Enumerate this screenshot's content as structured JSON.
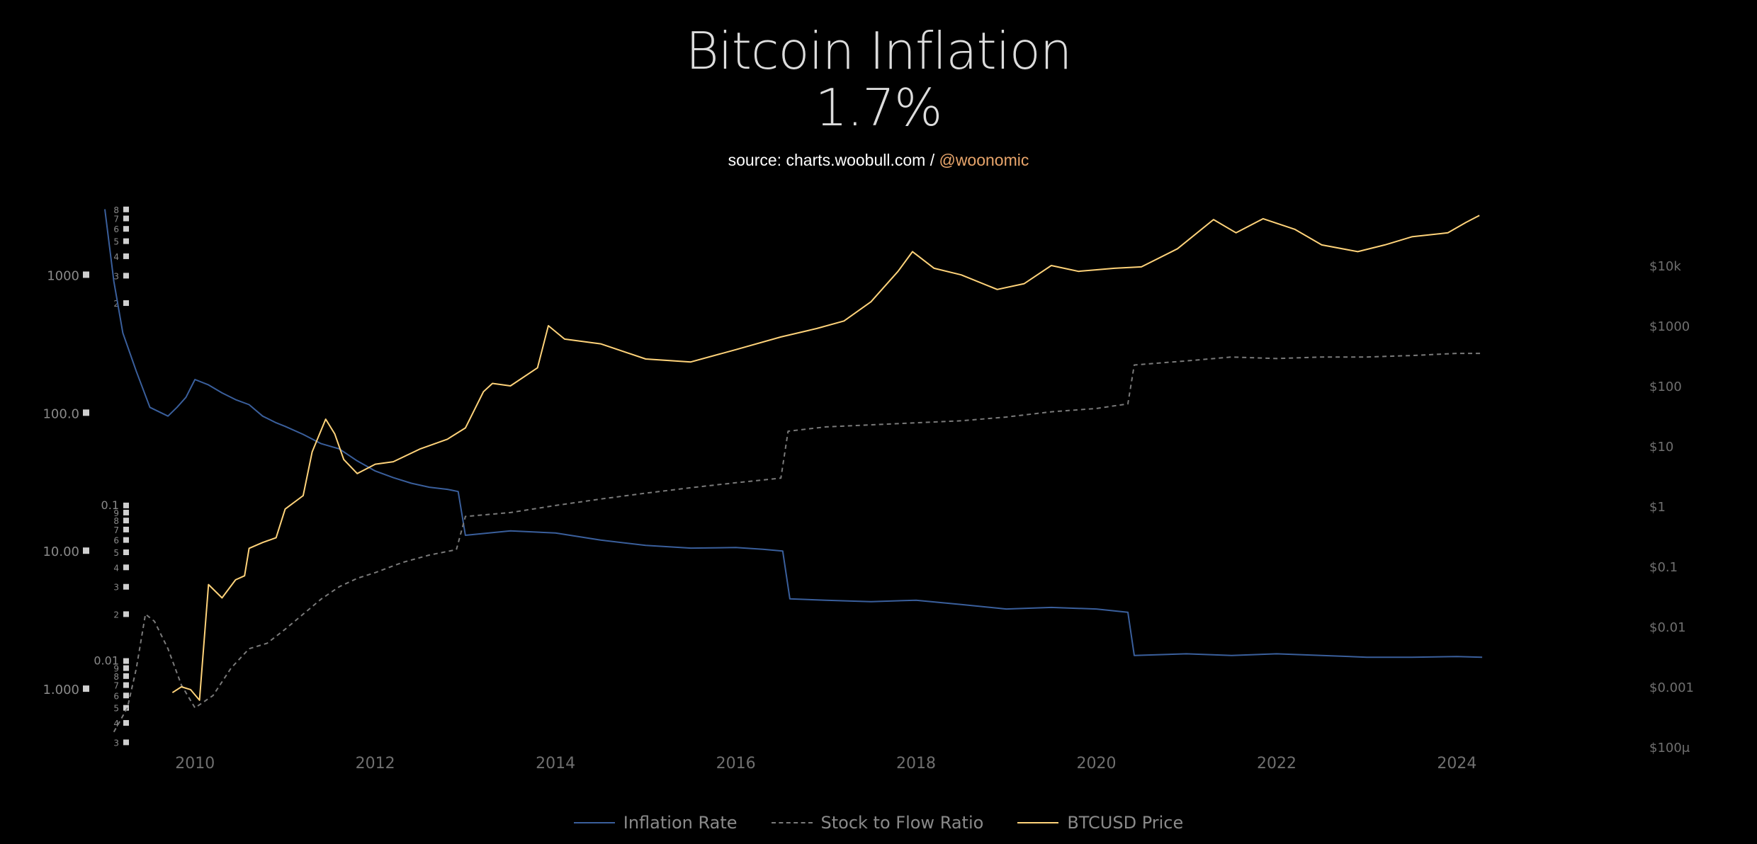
{
  "header": {
    "title": "Bitcoin Inflation",
    "value": "1.7%",
    "source_prefix": "source: charts.woobull.com / ",
    "source_handle": "@woonomic"
  },
  "legend": [
    {
      "label": "Inflation Rate",
      "color": "#3a5f9c",
      "style": "solid"
    },
    {
      "label": "Stock to Flow Ratio",
      "color": "#7a7a7a",
      "style": "dashed"
    },
    {
      "label": "BTCUSD Price",
      "color": "#ffd37a",
      "style": "solid"
    }
  ],
  "chart_data": {
    "type": "line",
    "x_axis": {
      "ticks": [
        "2010",
        "2012",
        "2014",
        "2016",
        "2018",
        "2020",
        "2022",
        "2024"
      ],
      "range": [
        2009.0,
        2025.6
      ]
    },
    "left_axis": {
      "scale": "log",
      "ticks": [
        "1000",
        "100.0",
        "10.00",
        "1.000"
      ],
      "range": [
        0.38,
        3200
      ]
    },
    "inner_axis": {
      "scale": "log",
      "minor_ticks": [
        "8",
        "7",
        "6",
        "5",
        "4",
        "3",
        "2",
        "0.1",
        "9",
        "8",
        "7",
        "6",
        "5",
        "4",
        "3",
        "2",
        "0.01",
        "9",
        "8",
        "7",
        "6",
        "5",
        "4",
        "3"
      ],
      "range": [
        0.0028,
        8.5
      ]
    },
    "right_axis": {
      "scale": "log",
      "ticks": [
        "$10k",
        "$1000",
        "$100",
        "$10",
        "$1",
        "$0.1",
        "$0.01",
        "$0.001",
        "$100μ"
      ],
      "range": [
        0.0001,
        100000
      ]
    },
    "grid": false,
    "legend_position": "bottom",
    "series": [
      {
        "name": "Inflation Rate",
        "axis": "left",
        "color": "#3a5f9c",
        "x": [
          2009.0,
          2009.1,
          2009.2,
          2009.35,
          2009.5,
          2009.7,
          2009.8,
          2009.9,
          2010.0,
          2010.15,
          2010.3,
          2010.45,
          2010.6,
          2010.75,
          2010.9,
          2011.0,
          2011.2,
          2011.4,
          2011.6,
          2011.8,
          2012.0,
          2012.2,
          2012.4,
          2012.6,
          2012.8,
          2012.92,
          2013.0,
          2013.5,
          2014.0,
          2014.5,
          2015.0,
          2015.5,
          2016.0,
          2016.3,
          2016.52,
          2016.6,
          2017.0,
          2017.5,
          2018.0,
          2018.5,
          2019.0,
          2019.5,
          2020.0,
          2020.35,
          2020.42,
          2021.0,
          2021.5,
          2022.0,
          2022.5,
          2023.0,
          2023.5,
          2024.0,
          2024.28
        ],
        "y": [
          3000,
          900,
          380,
          200,
          110,
          95,
          110,
          130,
          175,
          160,
          140,
          125,
          115,
          95,
          85,
          80,
          70,
          60,
          55,
          45,
          38,
          34,
          31,
          29,
          28,
          27,
          13,
          14,
          13.5,
          12,
          11,
          10.5,
          10.6,
          10.3,
          10.0,
          4.5,
          4.4,
          4.3,
          4.4,
          4.1,
          3.8,
          3.9,
          3.8,
          3.6,
          1.75,
          1.8,
          1.75,
          1.8,
          1.75,
          1.7,
          1.7,
          1.72,
          1.7
        ]
      },
      {
        "name": "Stock to Flow Ratio",
        "axis": "inner",
        "color": "#7a7a7a",
        "x": [
          2009.1,
          2009.25,
          2009.35,
          2009.45,
          2009.55,
          2009.7,
          2009.85,
          2010.0,
          2010.2,
          2010.4,
          2010.6,
          2010.8,
          2011.0,
          2011.2,
          2011.4,
          2011.6,
          2011.8,
          2012.0,
          2012.3,
          2012.6,
          2012.9,
          2013.0,
          2013.5,
          2014.0,
          2014.5,
          2015.0,
          2015.5,
          2016.0,
          2016.5,
          2016.58,
          2017.0,
          2017.5,
          2018.0,
          2018.5,
          2019.0,
          2019.5,
          2020.0,
          2020.35,
          2020.42,
          2021.0,
          2021.5,
          2022.0,
          2022.5,
          2023.0,
          2023.5,
          2024.0,
          2024.28
        ],
        "y": [
          0.0035,
          0.005,
          0.009,
          0.02,
          0.018,
          0.012,
          0.007,
          0.005,
          0.006,
          0.009,
          0.012,
          0.013,
          0.016,
          0.02,
          0.025,
          0.03,
          0.034,
          0.037,
          0.043,
          0.048,
          0.052,
          0.085,
          0.09,
          0.1,
          0.11,
          0.12,
          0.13,
          0.14,
          0.15,
          0.3,
          0.32,
          0.33,
          0.34,
          0.35,
          0.37,
          0.4,
          0.42,
          0.45,
          0.8,
          0.85,
          0.9,
          0.88,
          0.9,
          0.9,
          0.92,
          0.95,
          0.95
        ]
      },
      {
        "name": "BTCUSD Price",
        "axis": "right",
        "color": "#ffd37a",
        "x": [
          2009.75,
          2009.85,
          2009.95,
          2010.05,
          2010.15,
          2010.3,
          2010.45,
          2010.55,
          2010.6,
          2010.75,
          2010.9,
          2011.0,
          2011.2,
          2011.3,
          2011.45,
          2011.55,
          2011.65,
          2011.8,
          2012.0,
          2012.2,
          2012.5,
          2012.8,
          2013.0,
          2013.2,
          2013.3,
          2013.5,
          2013.8,
          2013.92,
          2014.1,
          2014.5,
          2015.0,
          2015.5,
          2016.0,
          2016.5,
          2016.9,
          2017.2,
          2017.5,
          2017.8,
          2017.96,
          2018.2,
          2018.5,
          2018.9,
          2019.2,
          2019.5,
          2019.8,
          2020.2,
          2020.5,
          2020.9,
          2021.3,
          2021.55,
          2021.85,
          2022.2,
          2022.5,
          2022.9,
          2023.2,
          2023.5,
          2023.9,
          2024.1,
          2024.25
        ],
        "y": [
          0.0008,
          0.001,
          0.0009,
          0.0006,
          0.05,
          0.03,
          0.06,
          0.07,
          0.2,
          0.25,
          0.3,
          0.9,
          1.5,
          8,
          28,
          16,
          6,
          3.5,
          5,
          5.5,
          9,
          13,
          20,
          80,
          110,
          100,
          200,
          1000,
          600,
          500,
          280,
          250,
          400,
          650,
          900,
          1200,
          2500,
          8000,
          17000,
          9000,
          7000,
          4000,
          5000,
          10000,
          8000,
          9000,
          9500,
          19000,
          58000,
          35000,
          60000,
          40000,
          22000,
          17000,
          22000,
          30000,
          35000,
          52000,
          68000
        ]
      }
    ]
  }
}
